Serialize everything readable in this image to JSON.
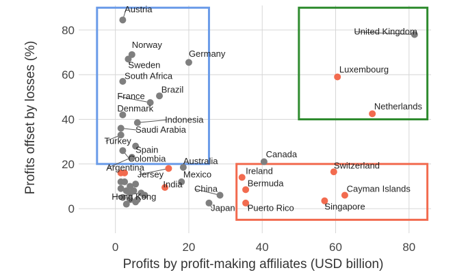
{
  "chart_data": {
    "type": "scatter",
    "title": "",
    "xlabel": "Profits by profit-making affiliates (USD billion)",
    "ylabel": "Profits offset by losses (%)",
    "xlim": [
      -10,
      86
    ],
    "ylim": [
      -11,
      91
    ],
    "xticks": [
      0,
      20,
      40,
      60,
      80
    ],
    "yticks": [
      0,
      20,
      40,
      60,
      80
    ],
    "grid": true,
    "colors": {
      "standard": "#7f7f7f",
      "highlight": "#f26b4f"
    },
    "boxes": [
      {
        "name": "top-left-box",
        "color": "#6a9be8",
        "x": [
          -5,
          25.5
        ],
        "y": [
          20,
          90
        ]
      },
      {
        "name": "top-right-box",
        "color": "#2e8b2e",
        "x": [
          50,
          85
        ],
        "y": [
          40,
          90
        ]
      },
      {
        "name": "bottom-right-box",
        "color": "#f26b4f",
        "x": [
          33,
          85
        ],
        "y": [
          -5,
          20
        ]
      }
    ],
    "labeled_points": [
      {
        "label": "Austria",
        "x": 2,
        "y": 84.5,
        "group": "standard",
        "lx": 2.5,
        "ly": 88
      },
      {
        "label": "Norway",
        "x": 4.5,
        "y": 69,
        "group": "standard",
        "lx": 4.5,
        "ly": 72
      },
      {
        "label": "Sweden",
        "x": 3.5,
        "y": 67,
        "group": "standard",
        "lx": 3.5,
        "ly": 63
      },
      {
        "label": "Germany",
        "x": 20,
        "y": 65.5,
        "group": "standard",
        "lx": 20,
        "ly": 68
      },
      {
        "label": "South Africa",
        "x": 2,
        "y": 57,
        "group": "standard",
        "lx": 2.5,
        "ly": 58
      },
      {
        "label": "Brazil",
        "x": 12,
        "y": 50.5,
        "group": "standard",
        "lx": 12.5,
        "ly": 52
      },
      {
        "label": "France",
        "x": 9.5,
        "y": 47.5,
        "group": "standard",
        "lx": 0.5,
        "ly": 49
      },
      {
        "label": "Denmark",
        "x": 2,
        "y": 42,
        "group": "standard",
        "lx": 0.5,
        "ly": 43.5
      },
      {
        "label": "Indonesia",
        "x": 6,
        "y": 38.5,
        "group": "standard",
        "lx": 13.5,
        "ly": 38.5
      },
      {
        "label": "Saudi Arabia",
        "x": 1.5,
        "y": 36,
        "group": "standard",
        "lx": 5.5,
        "ly": 34
      },
      {
        "label": "Turkey",
        "x": 1.5,
        "y": 33,
        "group": "standard",
        "lx": -3,
        "ly": 29
      },
      {
        "label": "Spain",
        "x": 5.5,
        "y": 28,
        "group": "standard",
        "lx": 5.5,
        "ly": 25
      },
      {
        "label": "Colombia",
        "x": 2,
        "y": 26,
        "group": "standard",
        "lx": 3.5,
        "ly": 21
      },
      {
        "label": "Argentina",
        "x": 4.5,
        "y": 23,
        "group": "standard",
        "lx": -2.5,
        "ly": 17
      },
      {
        "label": "Australia",
        "x": 18.5,
        "y": 18.5,
        "group": "standard",
        "lx": 18.5,
        "ly": 20
      },
      {
        "label": "Jersey",
        "x": 14.5,
        "y": 18,
        "group": "highlight",
        "lx": 6,
        "ly": 14
      },
      {
        "label": "Mexico",
        "x": 18,
        "y": 12,
        "group": "standard",
        "lx": 18.5,
        "ly": 14
      },
      {
        "label": "India",
        "x": 13.5,
        "y": 9.5,
        "group": "highlight",
        "lx": 13,
        "ly": 9.5
      },
      {
        "label": "Hong Kong",
        "x": 7,
        "y": 7,
        "group": "standard",
        "lx": -1,
        "ly": 4
      },
      {
        "label": "China",
        "x": 28.5,
        "y": 6,
        "group": "standard",
        "lx": 21.5,
        "ly": 7.5
      },
      {
        "label": "Japan",
        "x": 25.5,
        "y": 2.5,
        "group": "standard",
        "lx": 26,
        "ly": -1
      },
      {
        "label": "Canada",
        "x": 40.5,
        "y": 21,
        "group": "standard",
        "lx": 41,
        "ly": 23
      },
      {
        "label": "Ireland",
        "x": 34.5,
        "y": 14,
        "group": "highlight",
        "lx": 35.5,
        "ly": 15.5
      },
      {
        "label": "Bermuda",
        "x": 35.5,
        "y": 8.5,
        "group": "highlight",
        "lx": 36,
        "ly": 10
      },
      {
        "label": "Puerto Rico",
        "x": 35.5,
        "y": 2.5,
        "group": "highlight",
        "lx": 36,
        "ly": -1
      },
      {
        "label": "Switzerland",
        "x": 59.5,
        "y": 16.5,
        "group": "highlight",
        "lx": 59.5,
        "ly": 18
      },
      {
        "label": "Cayman Islands",
        "x": 62.5,
        "y": 6,
        "group": "highlight",
        "lx": 63,
        "ly": 7.5
      },
      {
        "label": "Singapore",
        "x": 57,
        "y": 3.5,
        "group": "highlight",
        "lx": 57,
        "ly": -0.5
      },
      {
        "label": "United Kingdom",
        "x": 81.5,
        "y": 78,
        "group": "standard",
        "lx": 65,
        "ly": 78
      },
      {
        "label": "Luxembourg",
        "x": 60.5,
        "y": 59,
        "group": "highlight",
        "lx": 61,
        "ly": 61
      },
      {
        "label": "Netherlands",
        "x": 70,
        "y": 42.5,
        "group": "highlight",
        "lx": 70.5,
        "ly": 44.5
      }
    ],
    "unlabeled_points": [
      {
        "x": 1.5,
        "y": 16,
        "group": "highlight"
      },
      {
        "x": 2.5,
        "y": 16,
        "group": "highlight"
      },
      {
        "x": 1.5,
        "y": 12,
        "group": "standard"
      },
      {
        "x": 2.5,
        "y": 12,
        "group": "standard"
      },
      {
        "x": 4,
        "y": 10,
        "group": "standard"
      },
      {
        "x": 5.5,
        "y": 11,
        "group": "standard"
      },
      {
        "x": 1.5,
        "y": 9,
        "group": "standard"
      },
      {
        "x": 3,
        "y": 8,
        "group": "standard"
      },
      {
        "x": 5,
        "y": 8,
        "group": "standard"
      },
      {
        "x": 8,
        "y": 6,
        "group": "standard"
      },
      {
        "x": 2,
        "y": 5,
        "group": "standard"
      },
      {
        "x": 4,
        "y": 4,
        "group": "standard"
      },
      {
        "x": 6,
        "y": 4,
        "group": "standard"
      },
      {
        "x": 3,
        "y": 2,
        "group": "standard"
      },
      {
        "x": 5.5,
        "y": 3,
        "group": "standard"
      },
      {
        "x": 4,
        "y": 7,
        "group": "standard"
      }
    ]
  }
}
